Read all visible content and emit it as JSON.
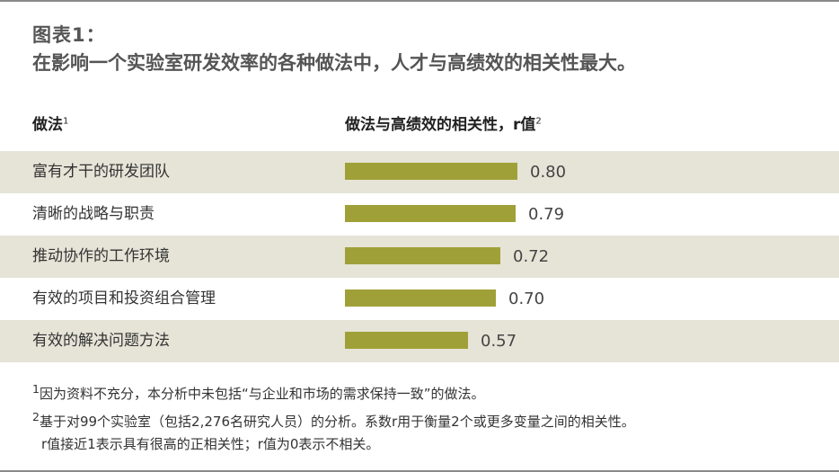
{
  "title": {
    "label": "图表1：",
    "text": "在影响一个实验室研发效率的各种做法中，人才与高绩效的相关性最大。"
  },
  "headers": {
    "practice": "做法",
    "practice_sup": "1",
    "correlation": "做法与高绩效的相关性，r值",
    "correlation_sup": "2"
  },
  "chart_data": {
    "type": "bar",
    "orientation": "horizontal",
    "categories": [
      "富有才干的研发团队",
      "清晰的战略与职责",
      "推动协作的工作环境",
      "有效的项目和投资组合管理",
      "有效的解决问题方法"
    ],
    "values": [
      0.8,
      0.79,
      0.72,
      0.7,
      0.57
    ],
    "value_labels": [
      "0.80",
      "0.79",
      "0.72",
      "0.70",
      "0.57"
    ],
    "bar_color": "#a0a039",
    "row_shade_color": "#e6e4d7"
  },
  "notes": {
    "n1_sup": "1",
    "n1": "因为资料不充分，本分析中未包括“与企业和市场的需求保持一致”的做法。",
    "n2_sup": "2",
    "n2": "基于对99个实验室（包括2,276名研究人员）的分析。系数r用于衡量2个或更多变量之间的相关性。",
    "n3": "r值接近1表示具有很高的正相关性；r值为0表示不相关。"
  }
}
